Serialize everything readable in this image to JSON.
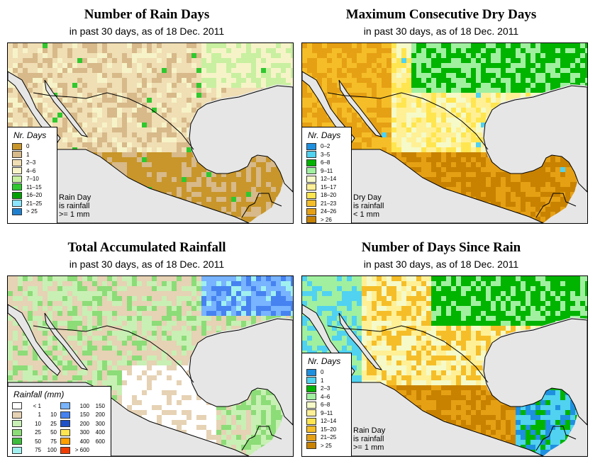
{
  "colors": {
    "ocean": "#e6e6e6",
    "border": "#000000"
  },
  "panels": [
    {
      "id": "rain_days",
      "title": "Number of Rain Days",
      "subtitle": "in past 30 days, as of  18 Dec. 2011",
      "legend": {
        "title": "Nr. Days",
        "items": [
          {
            "label": "0",
            "color": "#c8962a"
          },
          {
            "label": "1",
            "color": "#d7b98a"
          },
          {
            "label": "2–3",
            "color": "#f0deb4"
          },
          {
            "label": "4–6",
            "color": "#f7f3c8"
          },
          {
            "label": "7–10",
            "color": "#c8f0a0"
          },
          {
            "label": "11–15",
            "color": "#2fc82f"
          },
          {
            "label": "16–20",
            "color": "#00a000"
          },
          {
            "label": "21–25",
            "color": "#8ce6ff"
          },
          {
            "label": "> 25",
            "color": "#2080d0"
          }
        ]
      },
      "note": [
        "Rain Day",
        "is rainfall",
        ">= 1 mm"
      ],
      "scheme": "raindays"
    },
    {
      "id": "max_dry",
      "title": "Maximum Consecutive Dry Days",
      "subtitle": "in past 30 days, as of  18 Dec. 2011",
      "legend": {
        "title": "Nr. Days",
        "items": [
          {
            "label": "0–2",
            "color": "#1e90e0"
          },
          {
            "label": "3–5",
            "color": "#50d2f0"
          },
          {
            "label": "6–8",
            "color": "#00b400"
          },
          {
            "label": "9–11",
            "color": "#a0f0a0"
          },
          {
            "label": "12–14",
            "color": "#f5fac8"
          },
          {
            "label": "15–17",
            "color": "#fff096"
          },
          {
            "label": "18–20",
            "color": "#ffe650"
          },
          {
            "label": "21–23",
            "color": "#f5be28"
          },
          {
            "label": "24–26",
            "color": "#e6a014"
          },
          {
            "label": "> 26",
            "color": "#c88200"
          }
        ]
      },
      "note": [
        "Dry Day",
        "is rainfall",
        "< 1 mm"
      ],
      "scheme": "maxdry"
    },
    {
      "id": "accum_rain",
      "title": "Total Accumulated Rainfall",
      "subtitle": "in past 30 days, as of  18 Dec. 2011",
      "legend": {
        "title": "Rainfall (mm)",
        "items": [
          {
            "from": "< 1",
            "to": "",
            "color": "#ffffff"
          },
          {
            "from": "1",
            "to": "10",
            "color": "#e6d2b4"
          },
          {
            "from": "10",
            "to": "25",
            "color": "#c8f0b4"
          },
          {
            "from": "25",
            "to": "50",
            "color": "#8cdc78"
          },
          {
            "from": "50",
            "to": "75",
            "color": "#3cbe3c"
          },
          {
            "from": "75",
            "to": "100",
            "color": "#a0f0f0"
          },
          {
            "from": "100",
            "to": "150",
            "color": "#78b4ff"
          },
          {
            "from": "150",
            "to": "200",
            "color": "#4682f0"
          },
          {
            "from": "200",
            "to": "300",
            "color": "#1e50c8"
          },
          {
            "from": "300",
            "to": "400",
            "color": "#ffe650"
          },
          {
            "from": "400",
            "to": "600",
            "color": "#ffa000"
          },
          {
            "from": "> 600",
            "to": "",
            "color": "#f03c00"
          }
        ]
      },
      "scheme": "accum"
    },
    {
      "id": "days_since",
      "title": "Number of Days Since Rain",
      "subtitle": "in past 30 days, as of  18 Dec. 2011",
      "legend": {
        "title": "Nr. Days",
        "items": [
          {
            "label": "0",
            "color": "#1e90e0"
          },
          {
            "label": "1",
            "color": "#50d2f0"
          },
          {
            "label": "2–3",
            "color": "#00b400"
          },
          {
            "label": "4–6",
            "color": "#a0f0a0"
          },
          {
            "label": "6–8",
            "color": "#f5fac8"
          },
          {
            "label": "9–11",
            "color": "#fff096"
          },
          {
            "label": "12–14",
            "color": "#ffe650"
          },
          {
            "label": "15–20",
            "color": "#f5be28"
          },
          {
            "label": "21–25",
            "color": "#e6a014"
          },
          {
            "label": "> 25",
            "color": "#c88200"
          }
        ]
      },
      "note": [
        "Rain Day",
        "is rainfall",
        ">= 1 mm"
      ],
      "scheme": "since"
    }
  ]
}
